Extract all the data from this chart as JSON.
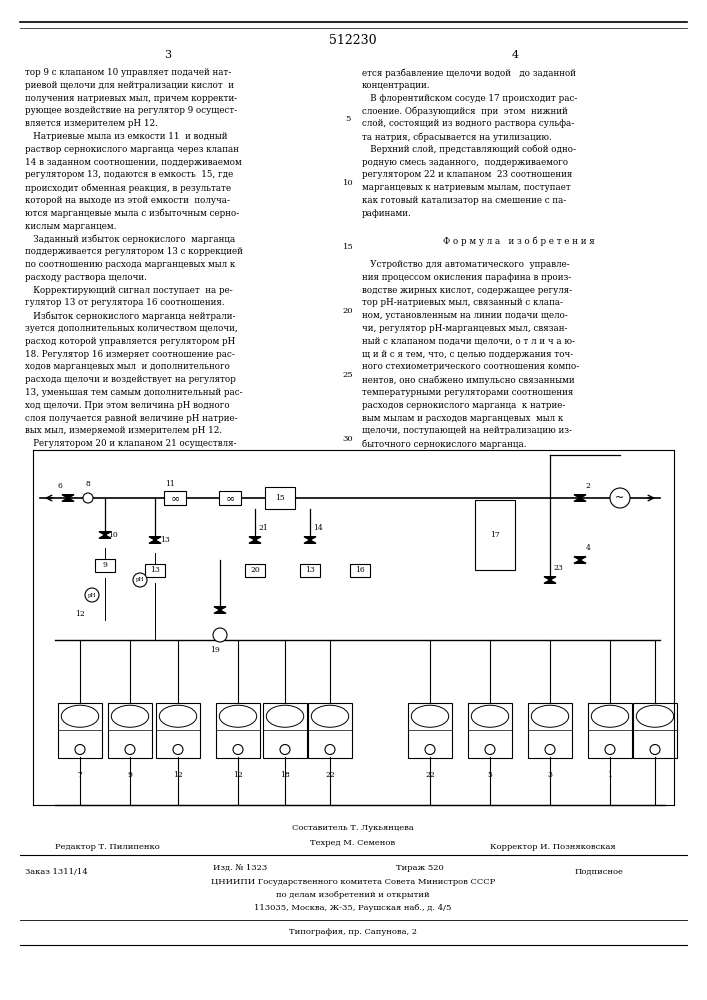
{
  "bg_color": "#ffffff",
  "patent_number": "512230",
  "page_left": "3",
  "page_right": "4",
  "col1_text": [
    "тор 9 с клапаном 10 управляет подачей нат-",
    "риевой щелочи для нейтрализации кислот  и",
    "получения натриевых мыл, причем корректи-",
    "рующее воздействие на регулятор 9 осущест-",
    "вляется измерителем pH 12.",
    "   Натриевые мыла из емкости 11  и водный",
    "раствор сернокислого марганца через клапан",
    "14 в заданном соотношении, поддерживаемом",
    "регулятором 13, подаются в емкость  15, где",
    "происходит обменная реакция, в результате",
    "которой на выходе из этой емкости  получа-",
    "ются марганцевые мыла с избыточным серно-",
    "кислым марганцем.",
    "   Заданный избыток сернокислого  марганца",
    "поддерживается регулятором 13 с коррекцией",
    "по соотношению расхода марганцевых мыл к",
    "расходу раствора щелочи.",
    "   Корректирующий сигнал поступает  на ре-",
    "гулятор 13 от регулятора 16 соотношения.",
    "   Избыток сернокислого марганца нейтрали-",
    "зуется дополнительных количеством щелочи,",
    "расход которой управляется регулятором pH",
    "18. Регулятор 16 измеряет соотношение рас-",
    "ходов марганцевых мыл  и дополнительного",
    "расхода щелочи и воздействует на регулятор",
    "13, уменьшая тем самым дополнительный рас-",
    "ход щелочи. При этом величина pH водного",
    "слоя получается равной величине pH натрие-",
    "вых мыл, измеряемой измерителем pH 12.",
    "   Регулятором 20 и клапаном 21 осуществля-"
  ],
  "col2_text": [
    "ется разбавление щелочи водой   до заданной",
    "концентрации.",
    "   В флорентийском сосуде 17 происходит рас-",
    "слоение. Образующийся  при  этом  нижний",
    "слой, состоящий из водного раствора сульфа-",
    "та натрия, сбрасывается на утилизацию.",
    "   Верхний слой, представляющий собой одно-",
    "родную смесь заданного,  поддерживаемого",
    "регулятором 22 и клапаном  23 соотношения",
    "марганцевых к натриевым мылам, поступает",
    "как готовый катализатор на смешение с па-",
    "рафинами.",
    "",
    "Ф о р м у л а   и з о б р е т е н и я",
    "",
    "   Устройство для автоматического  управле-",
    "ния процессом окисления парафина в произ-",
    "водстве жирных кислот, содержащее регуля-",
    "тор pH-натриевых мыл, связанный с клапа-",
    "ном, установленным на линии подачи щело-",
    "чи, регулятор pH-марганцевых мыл, связан-",
    "ный с клапаном подачи щелочи, о т л и ч а ю-",
    "щ и й с я тем, что, с целью поддержания точ-",
    "ного стехиометрического соотношения компо-",
    "нентов, оно снабжено импульсно связанными",
    "температурными регуляторами соотношения",
    "расходов сернокислого марганца  к натрие-",
    "вым мылам и расходов марганцевых  мыл к",
    "щелочи, поступающей на нейтрализацию из-",
    "быточного сернокислого марганца."
  ],
  "line_numbers": [
    "",
    "",
    "",
    "",
    "5",
    "",
    "",
    "",
    "",
    "10",
    "",
    "",
    "",
    "",
    "15",
    "",
    "",
    "",
    "",
    "20",
    "",
    "",
    "",
    "",
    "25",
    "",
    "",
    "",
    "",
    "30"
  ],
  "footer_composer": "Составитель Т. Лукьянцева",
  "footer_editor": "Редактор Т. Пилипенко",
  "footer_techred": "Техред М. Семенов",
  "footer_corrector": "Корректор И. Позняковская",
  "footer_order": "Заказ 1311/14",
  "footer_edition": "Изд. № 1323",
  "footer_print": "Тираж 520",
  "footer_subscription": "Подписное",
  "footer_org1": "ЦНИИПИ Государственного комитета Совета Министров СССР",
  "footer_org2": "по делам изобретений и открытий",
  "footer_address": "113035, Москва, Ж-35, Раушская наб., д. 4/5",
  "footer_printer": "Типография, пр. Сапунова, 2"
}
